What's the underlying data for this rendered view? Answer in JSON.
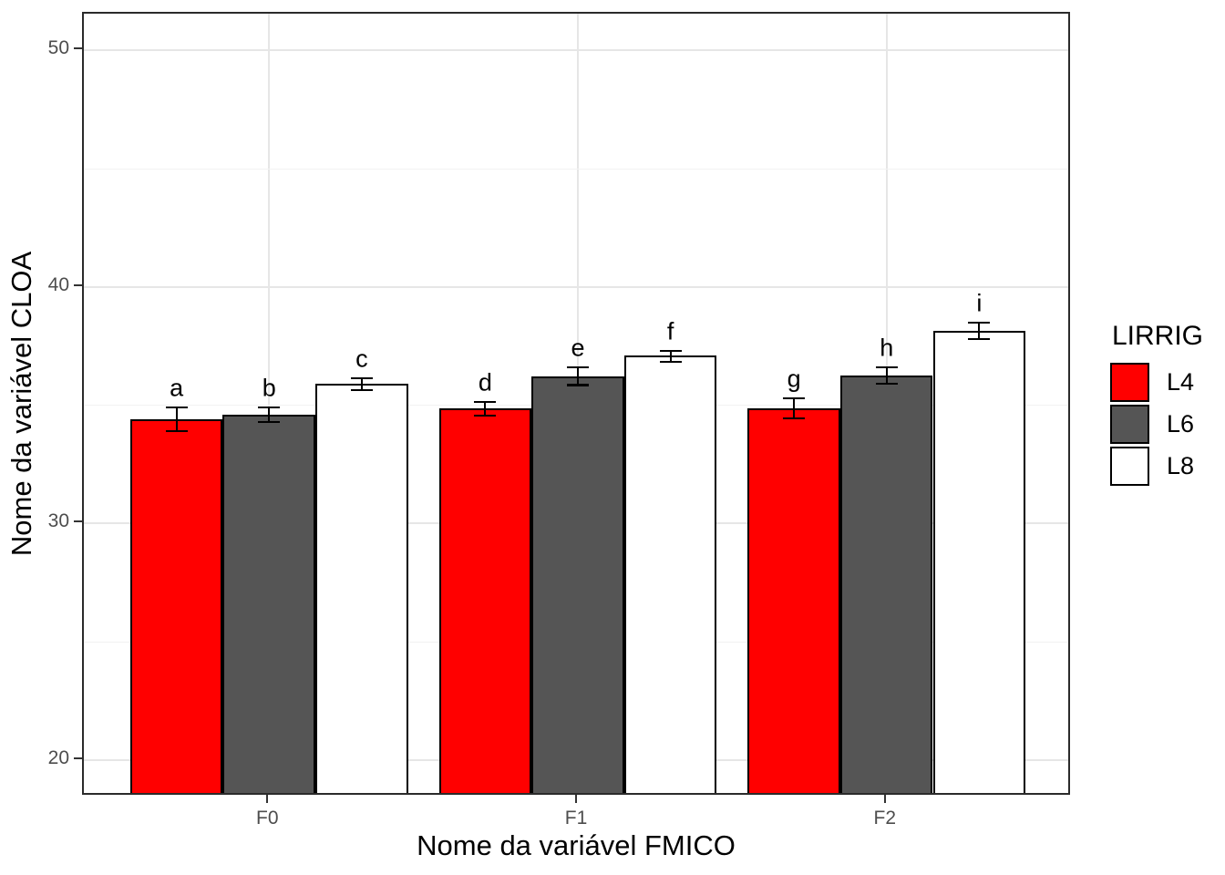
{
  "chart_data": {
    "type": "bar",
    "subtype": "grouped-vertical-with-errorbars",
    "title": "",
    "xlabel": "Nome da variável FMICO",
    "ylabel": "Nome da variável CLOA",
    "categories": [
      "F0",
      "F1",
      "F2"
    ],
    "series": [
      {
        "name": "L4",
        "color": "#ff0000",
        "values": [
          34.4,
          34.85,
          34.85
        ],
        "error_low": [
          33.9,
          34.55,
          34.45
        ],
        "error_high": [
          34.9,
          35.15,
          35.3
        ],
        "point_labels": [
          "a",
          "d",
          "g"
        ]
      },
      {
        "name": "L6",
        "color": "#555555",
        "values": [
          34.6,
          36.2,
          36.25
        ],
        "error_low": [
          34.3,
          35.85,
          35.9
        ],
        "error_high": [
          34.9,
          36.6,
          36.6
        ],
        "point_labels": [
          "b",
          "e",
          "h"
        ]
      },
      {
        "name": "L8",
        "color": "#ffffff",
        "values": [
          35.9,
          37.1,
          38.15
        ],
        "error_low": [
          35.65,
          36.85,
          37.8
        ],
        "error_high": [
          36.15,
          37.3,
          38.5
        ],
        "point_labels": [
          "c",
          "f",
          "i"
        ]
      }
    ],
    "ylim": [
      18.45,
      51.55
    ],
    "yticks": [
      20,
      30,
      40,
      50
    ],
    "yticks_minor": [
      25,
      35,
      45
    ],
    "grid": true,
    "legend": {
      "title": "LIRRIG",
      "position": "right",
      "entries": [
        "L4",
        "L6",
        "L8"
      ]
    },
    "colors": {
      "bar_border": "#000000",
      "errorbar": "#000000",
      "axis_text": "#4d4d4d",
      "panel_border": "#2b2b2b",
      "grid_major": "#e6e6e6",
      "grid_minor": "#f2f2f2"
    }
  }
}
